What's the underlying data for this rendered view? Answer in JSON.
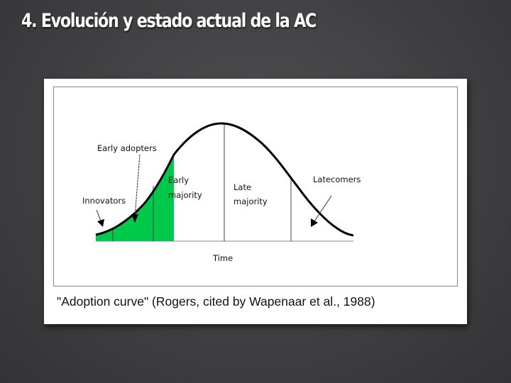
{
  "slide": {
    "title": "4.  Evolución y estado actual de la AC"
  },
  "figure": {
    "labels": {
      "early_adopters": "Early adopters",
      "innovators": "Innovators",
      "early_majority_1": "Early",
      "early_majority_2": "majority",
      "late_majority_1": "Late",
      "late_majority_2": "majority",
      "latecomers": "Latecomers",
      "x_axis": "Time"
    },
    "highlight_color": "#00c84a",
    "caption": "\"Adoption curve\" (Rogers, cited by Wapenaar et al., 1988)"
  }
}
